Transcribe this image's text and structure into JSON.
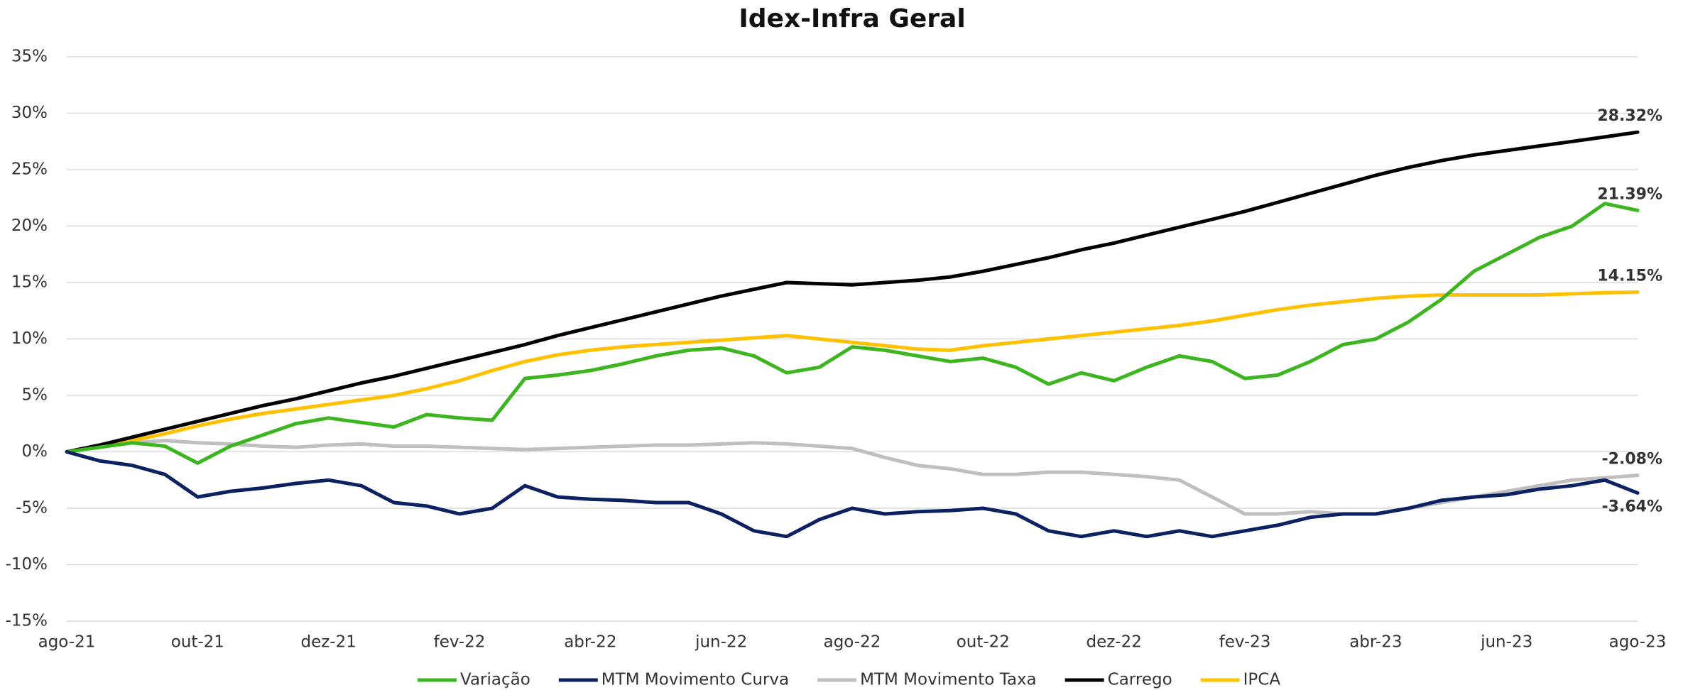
{
  "chart_data": {
    "type": "line",
    "title": "Idex-Infra Geral",
    "categories": [
      "ago-21",
      null,
      null,
      null,
      "out-21",
      null,
      null,
      null,
      "dez-21",
      null,
      null,
      null,
      "fev-22",
      null,
      null,
      null,
      "abr-22",
      null,
      null,
      null,
      "jun-22",
      null,
      null,
      null,
      "ago-22",
      null,
      null,
      null,
      "out-22",
      null,
      null,
      null,
      "dez-22",
      null,
      null,
      null,
      "fev-23",
      null,
      null,
      null,
      "abr-23",
      null,
      null,
      null,
      "jun-23",
      null,
      null,
      null,
      "ago-23"
    ],
    "ylim": [
      -15,
      35
    ],
    "yticks": [
      {
        "value": -15,
        "label": "-15%"
      },
      {
        "value": -10,
        "label": "-10%"
      },
      {
        "value": -5,
        "label": "-5%"
      },
      {
        "value": 0,
        "label": "0%"
      },
      {
        "value": 5,
        "label": "5%"
      },
      {
        "value": 10,
        "label": "10%"
      },
      {
        "value": 15,
        "label": "15%"
      },
      {
        "value": 20,
        "label": "20%"
      },
      {
        "value": 25,
        "label": "25%"
      },
      {
        "value": 30,
        "label": "30%"
      },
      {
        "value": 35,
        "label": "35%"
      }
    ],
    "grid": true,
    "legend": "bottom",
    "series": [
      {
        "name": "Variação",
        "color": "#3cb521",
        "values": [
          0,
          0.4,
          0.8,
          0.5,
          -1.0,
          0.5,
          1.5,
          2.5,
          3.0,
          2.6,
          2.2,
          3.3,
          3.0,
          2.8,
          6.5,
          6.8,
          7.2,
          7.8,
          8.5,
          9.0,
          9.2,
          8.5,
          7.0,
          7.5,
          9.3,
          9.0,
          8.5,
          8.0,
          8.3,
          7.5,
          6.0,
          7.0,
          6.3,
          7.5,
          8.5,
          8.0,
          6.5,
          6.8,
          8.0,
          9.5,
          10.0,
          11.5,
          13.5,
          16.0,
          17.5,
          19.0,
          20.0,
          22.0,
          21.39
        ],
        "value_labels": [
          null,
          null,
          null,
          null,
          null,
          null,
          null,
          null,
          null,
          null,
          null,
          null,
          null,
          null,
          null,
          null,
          null,
          null,
          null,
          null,
          null,
          null,
          null,
          null,
          null,
          null,
          null,
          null,
          null,
          null,
          null,
          null,
          null,
          null,
          null,
          null,
          null,
          null,
          null,
          null,
          null,
          null,
          null,
          null,
          null,
          null,
          null,
          null,
          "21.39%"
        ]
      },
      {
        "name": "MTM Movimento Curva",
        "color": "#0b2161",
        "values": [
          0,
          -0.8,
          -1.2,
          -2.0,
          -4.0,
          -3.5,
          -3.2,
          -2.8,
          -2.5,
          -3.0,
          -4.5,
          -4.8,
          -5.5,
          -5.0,
          -3.0,
          -4.0,
          -4.2,
          -4.3,
          -4.5,
          -4.5,
          -5.5,
          -7.0,
          -7.5,
          -6.0,
          -5.0,
          -5.5,
          -5.3,
          -5.2,
          -5.0,
          -5.5,
          -7.0,
          -7.5,
          -7.0,
          -7.5,
          -7.0,
          -7.5,
          -7.0,
          -6.5,
          -5.8,
          -5.5,
          -5.5,
          -5.0,
          -4.3,
          -4.0,
          -3.8,
          -3.3,
          -3.0,
          -2.5,
          -3.64
        ],
        "value_labels": [
          null,
          null,
          null,
          null,
          null,
          null,
          null,
          null,
          null,
          null,
          null,
          null,
          null,
          null,
          null,
          null,
          null,
          null,
          null,
          null,
          null,
          null,
          null,
          null,
          null,
          null,
          null,
          null,
          null,
          null,
          null,
          null,
          null,
          null,
          null,
          null,
          null,
          null,
          null,
          null,
          null,
          null,
          null,
          null,
          null,
          null,
          null,
          null,
          "-3.64%"
        ]
      },
      {
        "name": "MTM Movimento Taxa",
        "color": "#bfbfbf",
        "values": [
          0,
          0.5,
          0.8,
          1.0,
          0.8,
          0.7,
          0.5,
          0.4,
          0.6,
          0.7,
          0.5,
          0.5,
          0.4,
          0.3,
          0.2,
          0.3,
          0.4,
          0.5,
          0.6,
          0.6,
          0.7,
          0.8,
          0.7,
          0.5,
          0.3,
          -0.5,
          -1.2,
          -1.5,
          -2.0,
          -2.0,
          -1.8,
          -1.8,
          -2.0,
          -2.2,
          -2.5,
          -4.0,
          -5.5,
          -5.5,
          -5.3,
          -5.5,
          -5.5,
          -5.0,
          -4.5,
          -4.0,
          -3.5,
          -3.0,
          -2.5,
          -2.3,
          -2.08
        ],
        "value_labels": [
          null,
          null,
          null,
          null,
          null,
          null,
          null,
          null,
          null,
          null,
          null,
          null,
          null,
          null,
          null,
          null,
          null,
          null,
          null,
          null,
          null,
          null,
          null,
          null,
          null,
          null,
          null,
          null,
          null,
          null,
          null,
          null,
          null,
          null,
          null,
          null,
          null,
          null,
          null,
          null,
          null,
          null,
          null,
          null,
          null,
          null,
          null,
          null,
          "-2.08%"
        ]
      },
      {
        "name": "Carrego",
        "color": "#000000",
        "values": [
          0,
          0.6,
          1.3,
          2.0,
          2.7,
          3.4,
          4.1,
          4.7,
          5.4,
          6.1,
          6.7,
          7.4,
          8.1,
          8.8,
          9.5,
          10.3,
          11.0,
          11.7,
          12.4,
          13.1,
          13.8,
          14.4,
          15.0,
          14.9,
          14.8,
          15.0,
          15.2,
          15.5,
          16.0,
          16.6,
          17.2,
          17.9,
          18.5,
          19.2,
          19.9,
          20.6,
          21.3,
          22.1,
          22.9,
          23.7,
          24.5,
          25.2,
          25.8,
          26.3,
          26.7,
          27.1,
          27.5,
          27.9,
          28.32
        ],
        "value_labels": [
          null,
          null,
          null,
          null,
          null,
          null,
          null,
          null,
          null,
          null,
          null,
          null,
          null,
          null,
          null,
          null,
          null,
          null,
          null,
          null,
          null,
          null,
          null,
          null,
          null,
          null,
          null,
          null,
          null,
          null,
          null,
          null,
          null,
          null,
          null,
          null,
          null,
          null,
          null,
          null,
          null,
          null,
          null,
          null,
          null,
          null,
          null,
          null,
          "28.32%"
        ]
      },
      {
        "name": "IPCA",
        "color": "#ffc000",
        "values": [
          0,
          0.5,
          1.0,
          1.6,
          2.3,
          2.9,
          3.4,
          3.8,
          4.2,
          4.6,
          5.0,
          5.6,
          6.3,
          7.2,
          8.0,
          8.6,
          9.0,
          9.3,
          9.5,
          9.7,
          9.9,
          10.1,
          10.3,
          10.0,
          9.7,
          9.4,
          9.1,
          9.0,
          9.4,
          9.7,
          10.0,
          10.3,
          10.6,
          10.9,
          11.2,
          11.6,
          12.1,
          12.6,
          13.0,
          13.3,
          13.6,
          13.8,
          13.9,
          13.9,
          13.9,
          13.9,
          14.0,
          14.1,
          14.15
        ],
        "value_labels": [
          null,
          null,
          null,
          null,
          null,
          null,
          null,
          null,
          null,
          null,
          null,
          null,
          null,
          null,
          null,
          null,
          null,
          null,
          null,
          null,
          null,
          null,
          null,
          null,
          null,
          null,
          null,
          null,
          null,
          null,
          null,
          null,
          null,
          null,
          null,
          null,
          null,
          null,
          null,
          null,
          null,
          null,
          null,
          null,
          null,
          null,
          null,
          null,
          "14.15%"
        ]
      }
    ]
  }
}
